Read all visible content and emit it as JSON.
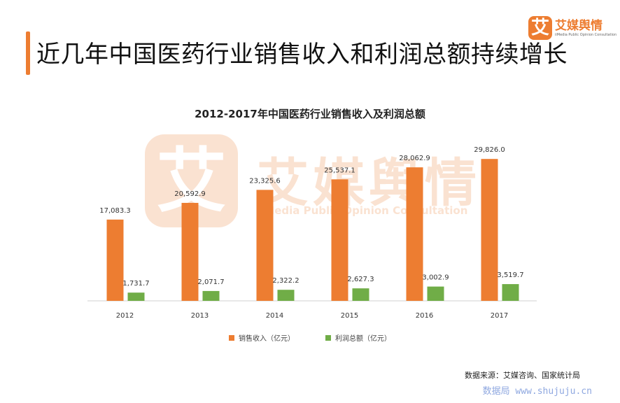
{
  "header": {
    "title": "近几年中国医药行业销售收入和利润总额持续增长"
  },
  "logo": {
    "mark": "艾",
    "name": "艾媒舆情",
    "tagline": "iiMedia Public Opinion Consultation"
  },
  "watermark": {
    "mark": "艾",
    "name": "艾媒舆情",
    "tagline": "iiMedia Public Opinion Consultation"
  },
  "footer": {
    "source": "数据来源：艾媒咨询、国家统计局",
    "site": "数据局 www.shujuju.cn"
  },
  "colors": {
    "accent": "#ED7D31",
    "series_sales": "#ED7D31",
    "series_profit": "#70AD47"
  },
  "chart_data": {
    "type": "bar",
    "title": "2012-2017年中国医药行业销售收入及利润总额",
    "categories": [
      "2012",
      "2013",
      "2014",
      "2015",
      "2016",
      "2017"
    ],
    "series": [
      {
        "name": "销售收入（亿元）",
        "values": [
          17083.3,
          20592.9,
          23325.6,
          25537.1,
          28062.9,
          29826.0
        ],
        "labels": [
          "17,083.3",
          "20,592.9",
          "23,325.6",
          "25,537.1",
          "28,062.9",
          "29,826.0"
        ]
      },
      {
        "name": "利润总额（亿元）",
        "values": [
          1731.7,
          2071.7,
          2322.2,
          2627.3,
          3002.9,
          3519.7
        ],
        "labels": [
          "1,731.7",
          "2,071.7",
          "2,322.2",
          "2,627.3",
          "3,002.9",
          "3,519.7"
        ]
      }
    ],
    "ylim": [
      0,
      30000
    ],
    "grid": false,
    "legend": "bottom"
  }
}
